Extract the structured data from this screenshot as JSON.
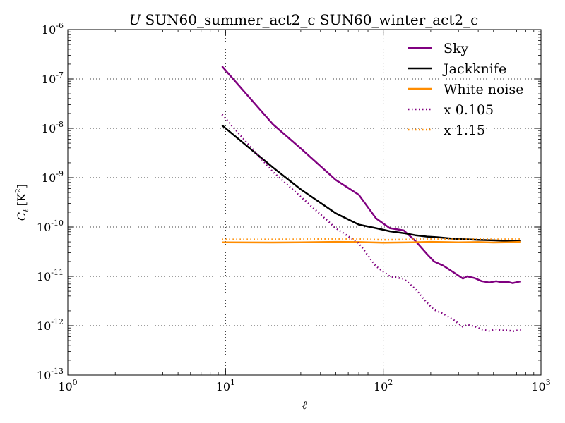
{
  "chart_data": {
    "type": "line",
    "title_prefix": "U",
    "title": "SUN60_summer_act2_c SUN60_winter_act2_c",
    "xlabel": "ℓ",
    "ylabel_main": "C",
    "ylabel_sub": "ℓ",
    "ylabel_unit": "[K",
    "ylabel_unit_sup": "2",
    "ylabel_unit_close": "]",
    "xscale": "log",
    "yscale": "log",
    "xlim": [
      1,
      1000
    ],
    "ylim": [
      1e-13,
      1e-06
    ],
    "grid": true,
    "legend_position": "top-right",
    "x_ticks": [
      {
        "value": 1,
        "base": "10",
        "exp": "0"
      },
      {
        "value": 10,
        "base": "10",
        "exp": "1"
      },
      {
        "value": 100,
        "base": "10",
        "exp": "2"
      },
      {
        "value": 1000,
        "base": "10",
        "exp": "3"
      }
    ],
    "y_ticks": [
      {
        "value": 1e-13,
        "base": "10",
        "exp": "-13"
      },
      {
        "value": 1e-12,
        "base": "10",
        "exp": "-12"
      },
      {
        "value": 1e-11,
        "base": "10",
        "exp": "-11"
      },
      {
        "value": 1e-10,
        "base": "10",
        "exp": "-10"
      },
      {
        "value": 1e-09,
        "base": "10",
        "exp": "-9"
      },
      {
        "value": 1e-08,
        "base": "10",
        "exp": "-8"
      },
      {
        "value": 1e-07,
        "base": "10",
        "exp": "-7"
      },
      {
        "value": 1e-06,
        "base": "10",
        "exp": "-6"
      }
    ],
    "series": [
      {
        "name": "Sky",
        "color": "#800080",
        "style": "solid",
        "points": [
          [
            9.5,
            1.8e-07
          ],
          [
            20,
            1.2e-08
          ],
          [
            30,
            3.9e-09
          ],
          [
            50,
            9e-10
          ],
          [
            70,
            4.5e-10
          ],
          [
            90,
            1.5e-10
          ],
          [
            110,
            9.5e-11
          ],
          [
            135,
            8.5e-11
          ],
          [
            160,
            5.2e-11
          ],
          [
            190,
            2.8e-11
          ],
          [
            210,
            2e-11
          ],
          [
            240,
            1.65e-11
          ],
          [
            280,
            1.2e-11
          ],
          [
            320,
            9e-12
          ],
          [
            340,
            1e-11
          ],
          [
            380,
            9.2e-12
          ],
          [
            420,
            8e-12
          ],
          [
            470,
            7.5e-12
          ],
          [
            520,
            8e-12
          ],
          [
            560,
            7.6e-12
          ],
          [
            620,
            7.7e-12
          ],
          [
            660,
            7.3e-12
          ],
          [
            700,
            7.6e-12
          ],
          [
            740,
            7.9e-12
          ]
        ]
      },
      {
        "name": "Jackknife",
        "color": "#000000",
        "style": "solid",
        "points": [
          [
            9.5,
            1.15e-08
          ],
          [
            20,
            1.6e-09
          ],
          [
            30,
            5.8e-10
          ],
          [
            50,
            1.9e-10
          ],
          [
            70,
            1.12e-10
          ],
          [
            90,
            9.5e-11
          ],
          [
            110,
            8.2e-11
          ],
          [
            135,
            7.5e-11
          ],
          [
            160,
            6.8e-11
          ],
          [
            190,
            6.4e-11
          ],
          [
            220,
            6.2e-11
          ],
          [
            260,
            5.9e-11
          ],
          [
            300,
            5.7e-11
          ],
          [
            350,
            5.6e-11
          ],
          [
            400,
            5.5e-11
          ],
          [
            480,
            5.4e-11
          ],
          [
            560,
            5.3e-11
          ],
          [
            640,
            5.2e-11
          ],
          [
            740,
            5.3e-11
          ]
        ]
      },
      {
        "name": "White noise",
        "color": "#ff8c00",
        "style": "solid",
        "points": [
          [
            9.5,
            4.9e-11
          ],
          [
            20,
            4.85e-11
          ],
          [
            30,
            4.9e-11
          ],
          [
            50,
            5e-11
          ],
          [
            70,
            4.95e-11
          ],
          [
            100,
            4.8e-11
          ],
          [
            150,
            4.9e-11
          ],
          [
            200,
            5e-11
          ],
          [
            300,
            4.9e-11
          ],
          [
            400,
            4.95e-11
          ],
          [
            500,
            4.85e-11
          ],
          [
            600,
            4.9e-11
          ],
          [
            740,
            5e-11
          ]
        ]
      },
      {
        "name": "x 0.105",
        "color": "#800080",
        "style": "dotted",
        "points": [
          [
            9.5,
            1.9e-08
          ],
          [
            20,
            1.3e-09
          ],
          [
            30,
            4.1e-10
          ],
          [
            50,
            9.5e-11
          ],
          [
            70,
            4.7e-11
          ],
          [
            90,
            1.6e-11
          ],
          [
            110,
            1e-11
          ],
          [
            135,
            8.9e-12
          ],
          [
            160,
            5.5e-12
          ],
          [
            190,
            2.9e-12
          ],
          [
            210,
            2.1e-12
          ],
          [
            240,
            1.75e-12
          ],
          [
            280,
            1.3e-12
          ],
          [
            320,
            9.5e-13
          ],
          [
            340,
            1.05e-12
          ],
          [
            380,
            9.7e-13
          ],
          [
            420,
            8.4e-13
          ],
          [
            470,
            7.9e-13
          ],
          [
            520,
            8.4e-13
          ],
          [
            560,
            8e-13
          ],
          [
            620,
            8.1e-13
          ],
          [
            660,
            7.7e-13
          ],
          [
            700,
            8e-13
          ],
          [
            740,
            8.3e-13
          ]
        ]
      },
      {
        "name": "x 1.15",
        "color": "#ff8c00",
        "style": "dotted",
        "points": [
          [
            9.5,
            5.6e-11
          ],
          [
            20,
            5.6e-11
          ],
          [
            30,
            5.65e-11
          ],
          [
            50,
            5.75e-11
          ],
          [
            70,
            5.7e-11
          ],
          [
            100,
            5.5e-11
          ],
          [
            150,
            5.6e-11
          ],
          [
            200,
            5.75e-11
          ],
          [
            300,
            5.6e-11
          ],
          [
            400,
            5.7e-11
          ],
          [
            500,
            5.6e-11
          ],
          [
            600,
            5.65e-11
          ],
          [
            740,
            5.75e-11
          ]
        ]
      }
    ]
  }
}
